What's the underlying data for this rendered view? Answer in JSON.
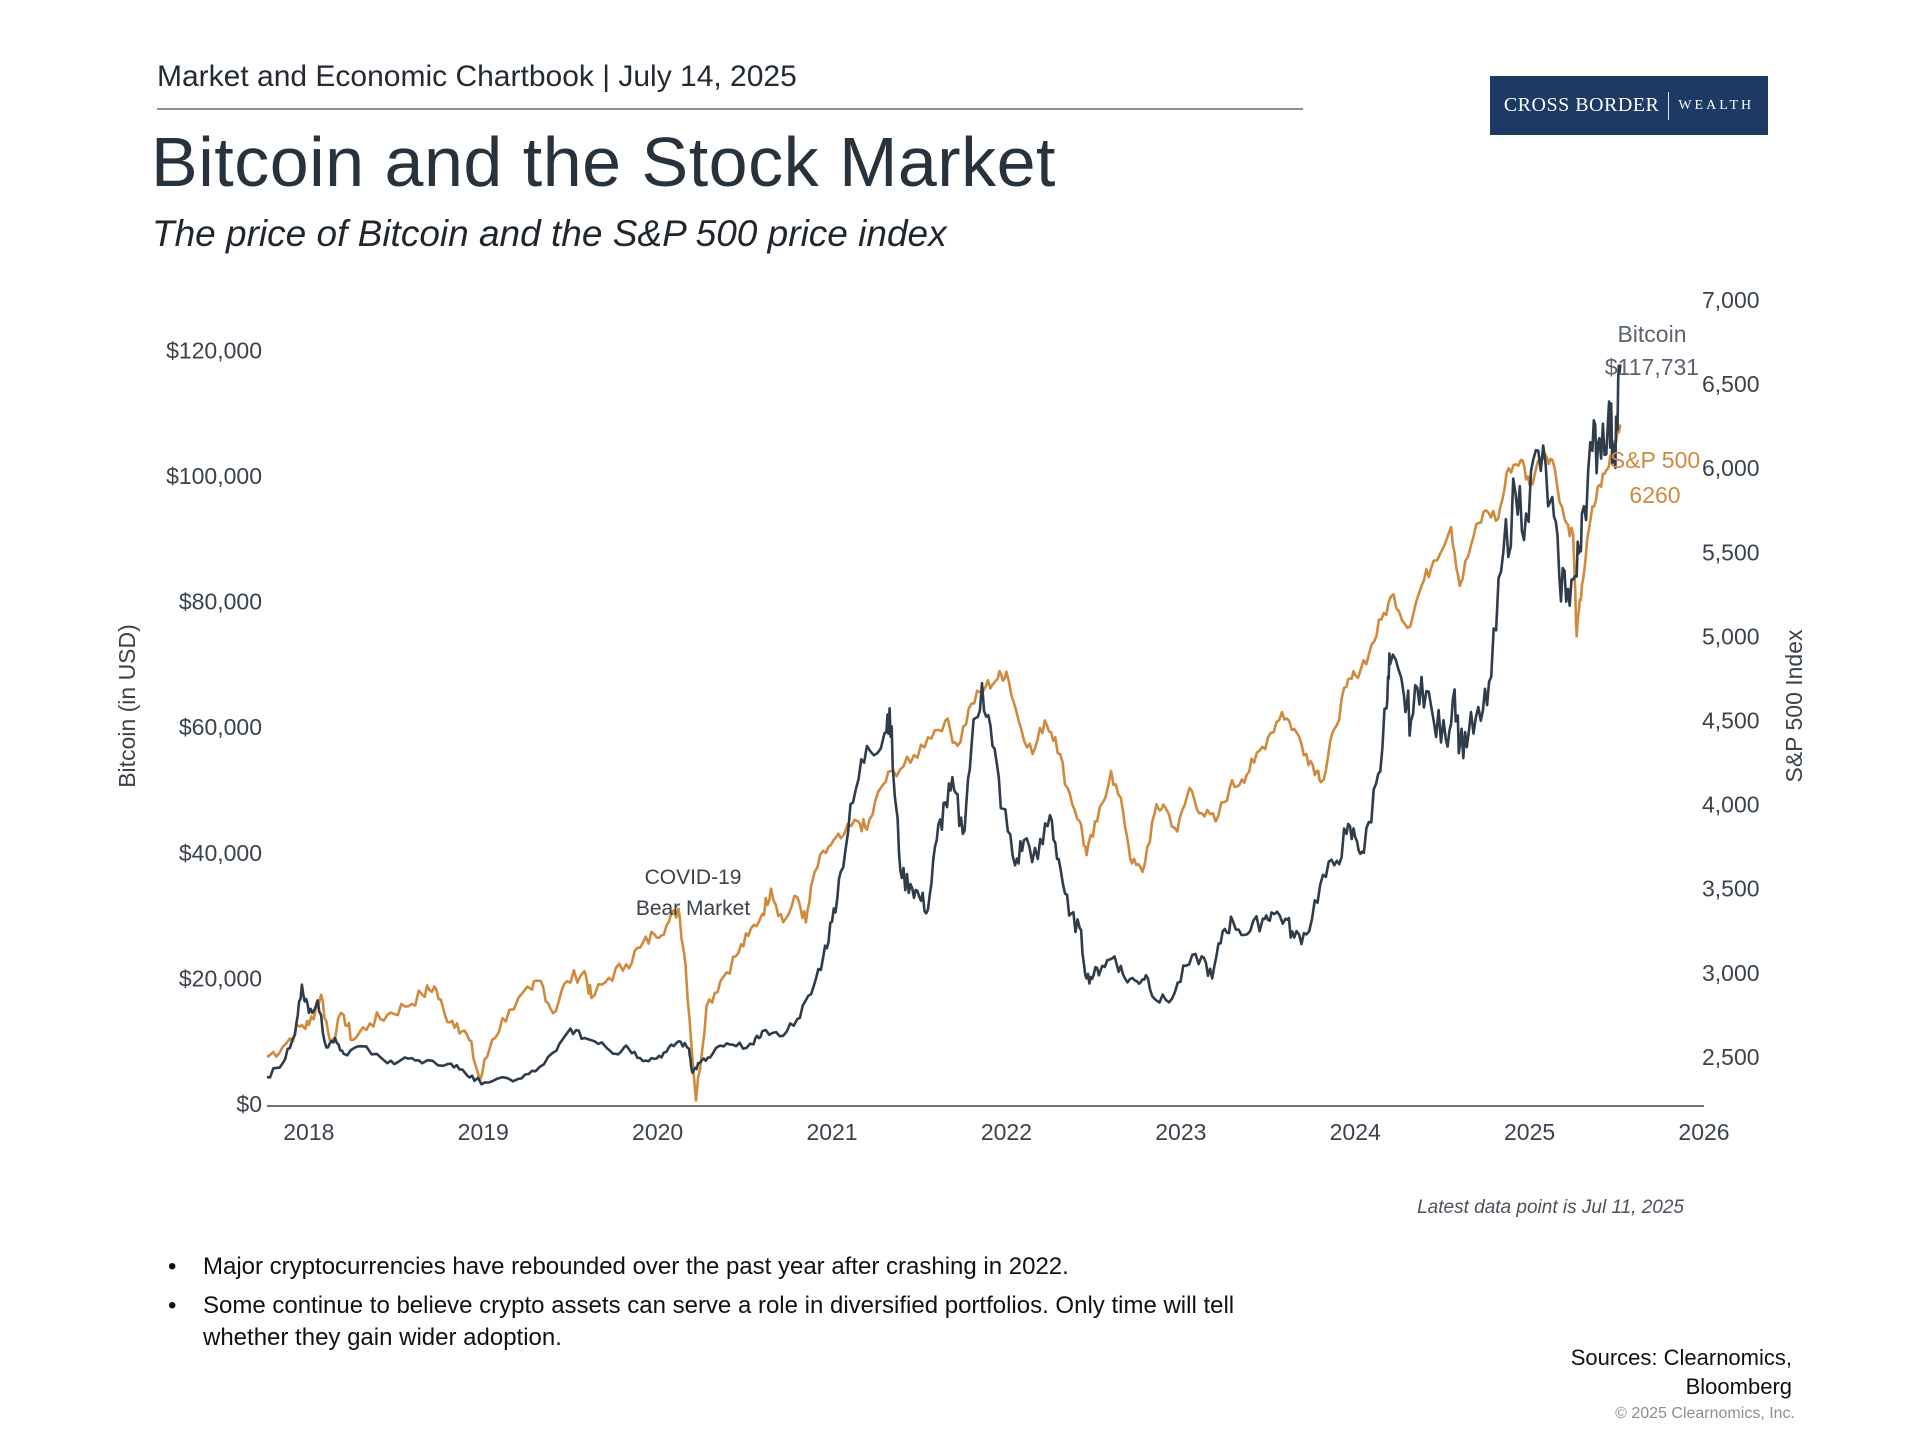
{
  "header": {
    "text": "Market and Economic Chartbook | July 14, 2025"
  },
  "logo": {
    "name_a": "CROSS BORDER",
    "name_b": "WEALTH",
    "color": "#1c3a64"
  },
  "title": "Bitcoin and the Stock Market",
  "subtitle": "The price of Bitcoin and the S&P 500 price index",
  "chart_data": {
    "type": "line",
    "title": "Bitcoin and the Stock Market",
    "subtitle": "The price of Bitcoin and the S&P 500 price index",
    "x": {
      "label": "",
      "range": [
        2017.76,
        2026.0
      ],
      "ticks": [
        2018,
        2019,
        2020,
        2021,
        2022,
        2023,
        2024,
        2025,
        2026
      ]
    },
    "y_left": {
      "label": "Bitcoin (in USD)",
      "range": [
        0,
        128000
      ],
      "ticks": [
        0,
        20000,
        40000,
        60000,
        80000,
        100000,
        120000
      ],
      "tick_labels": [
        "$0",
        "$20,000",
        "$40,000",
        "$60,000",
        "$80,000",
        "$100,000",
        "$120,000"
      ]
    },
    "y_right": {
      "label": "S&P 500 Index",
      "range": [
        2220,
        7000
      ],
      "ticks": [
        2500,
        3000,
        3500,
        4000,
        4500,
        5000,
        5500,
        6000,
        6500,
        7000
      ],
      "tick_labels": [
        "2,500",
        "3,000",
        "3,500",
        "4,000",
        "4,500",
        "5,000",
        "5,500",
        "6,000",
        "6,500",
        "7,000"
      ]
    },
    "series": [
      {
        "name": "Bitcoin",
        "axis": "left",
        "color": "#2f3c4a",
        "end_label": [
          "Bitcoin",
          "$117,731"
        ],
        "points": [
          [
            2017.76,
            4300
          ],
          [
            2017.85,
            6500
          ],
          [
            2017.92,
            11000
          ],
          [
            2017.96,
            19000
          ],
          [
            2018.0,
            14500
          ],
          [
            2018.05,
            16500
          ],
          [
            2018.1,
            9000
          ],
          [
            2018.15,
            10500
          ],
          [
            2018.2,
            8000
          ],
          [
            2018.3,
            9200
          ],
          [
            2018.45,
            6500
          ],
          [
            2018.55,
            7400
          ],
          [
            2018.65,
            6500
          ],
          [
            2018.8,
            6400
          ],
          [
            2018.88,
            5500
          ],
          [
            2018.95,
            3700
          ],
          [
            2019.05,
            3600
          ],
          [
            2019.2,
            4000
          ],
          [
            2019.3,
            5200
          ],
          [
            2019.42,
            8500
          ],
          [
            2019.5,
            12000
          ],
          [
            2019.58,
            10500
          ],
          [
            2019.68,
            9800
          ],
          [
            2019.76,
            8000
          ],
          [
            2019.82,
            9300
          ],
          [
            2019.9,
            7300
          ],
          [
            2019.98,
            7200
          ],
          [
            2020.05,
            8300
          ],
          [
            2020.12,
            10000
          ],
          [
            2020.18,
            8800
          ],
          [
            2020.2,
            5000
          ],
          [
            2020.24,
            6500
          ],
          [
            2020.3,
            7400
          ],
          [
            2020.36,
            9300
          ],
          [
            2020.45,
            9200
          ],
          [
            2020.55,
            9500
          ],
          [
            2020.6,
            11600
          ],
          [
            2020.7,
            10800
          ],
          [
            2020.8,
            13500
          ],
          [
            2020.88,
            17500
          ],
          [
            2020.95,
            23500
          ],
          [
            2021.0,
            29000
          ],
          [
            2021.05,
            37000
          ],
          [
            2021.12,
            48000
          ],
          [
            2021.2,
            57000
          ],
          [
            2021.3,
            59000
          ],
          [
            2021.33,
            63000
          ],
          [
            2021.36,
            49000
          ],
          [
            2021.4,
            36000
          ],
          [
            2021.45,
            35000
          ],
          [
            2021.5,
            33000
          ],
          [
            2021.55,
            31000
          ],
          [
            2021.6,
            42000
          ],
          [
            2021.65,
            48000
          ],
          [
            2021.7,
            50000
          ],
          [
            2021.75,
            43000
          ],
          [
            2021.8,
            57000
          ],
          [
            2021.86,
            67000
          ],
          [
            2021.92,
            57000
          ],
          [
            2021.98,
            47000
          ],
          [
            2022.05,
            38000
          ],
          [
            2022.1,
            42000
          ],
          [
            2022.18,
            39000
          ],
          [
            2022.25,
            46000
          ],
          [
            2022.3,
            39000
          ],
          [
            2022.36,
            30000
          ],
          [
            2022.42,
            28000
          ],
          [
            2022.46,
            20000
          ],
          [
            2022.5,
            20500
          ],
          [
            2022.55,
            22000
          ],
          [
            2022.62,
            23500
          ],
          [
            2022.68,
            20000
          ],
          [
            2022.75,
            19500
          ],
          [
            2022.8,
            20500
          ],
          [
            2022.86,
            16500
          ],
          [
            2022.95,
            16800
          ],
          [
            2023.03,
            22000
          ],
          [
            2023.12,
            23500
          ],
          [
            2023.18,
            20000
          ],
          [
            2023.24,
            27500
          ],
          [
            2023.3,
            29000
          ],
          [
            2023.38,
            27000
          ],
          [
            2023.47,
            29500
          ],
          [
            2023.52,
            30500
          ],
          [
            2023.6,
            29500
          ],
          [
            2023.65,
            26500
          ],
          [
            2023.72,
            27000
          ],
          [
            2023.8,
            35000
          ],
          [
            2023.88,
            38000
          ],
          [
            2023.95,
            43000
          ],
          [
            2024.0,
            42500
          ],
          [
            2024.05,
            40000
          ],
          [
            2024.12,
            51000
          ],
          [
            2024.18,
            63000
          ],
          [
            2024.2,
            70000
          ],
          [
            2024.28,
            65000
          ],
          [
            2024.32,
            61000
          ],
          [
            2024.38,
            68000
          ],
          [
            2024.45,
            61000
          ],
          [
            2024.52,
            58000
          ],
          [
            2024.57,
            66000
          ],
          [
            2024.6,
            57000
          ],
          [
            2024.65,
            59000
          ],
          [
            2024.72,
            61000
          ],
          [
            2024.78,
            68000
          ],
          [
            2024.85,
            88000
          ],
          [
            2024.92,
            97000
          ],
          [
            2024.98,
            94000
          ],
          [
            2025.05,
            104000
          ],
          [
            2025.12,
            96000
          ],
          [
            2025.17,
            84000
          ],
          [
            2025.22,
            82000
          ],
          [
            2025.27,
            84000
          ],
          [
            2025.3,
            94000
          ],
          [
            2025.36,
            104000
          ],
          [
            2025.4,
            106000
          ],
          [
            2025.45,
            109000
          ],
          [
            2025.48,
            105000
          ],
          [
            2025.5,
            108000
          ],
          [
            2025.52,
            117731
          ]
        ]
      },
      {
        "name": "S&P 500",
        "axis": "right",
        "color": "#d08a3e",
        "end_label": [
          "S&P 500",
          "6260"
        ],
        "points": [
          [
            2017.76,
            2500
          ],
          [
            2017.85,
            2560
          ],
          [
            2017.95,
            2680
          ],
          [
            2018.0,
            2690
          ],
          [
            2018.07,
            2870
          ],
          [
            2018.12,
            2600
          ],
          [
            2018.2,
            2750
          ],
          [
            2018.25,
            2600
          ],
          [
            2018.35,
            2700
          ],
          [
            2018.45,
            2750
          ],
          [
            2018.55,
            2800
          ],
          [
            2018.65,
            2870
          ],
          [
            2018.72,
            2920
          ],
          [
            2018.78,
            2750
          ],
          [
            2018.85,
            2700
          ],
          [
            2018.92,
            2600
          ],
          [
            2018.98,
            2360
          ],
          [
            2019.05,
            2600
          ],
          [
            2019.15,
            2780
          ],
          [
            2019.28,
            2900
          ],
          [
            2019.33,
            2950
          ],
          [
            2019.4,
            2760
          ],
          [
            2019.48,
            2950
          ],
          [
            2019.58,
            3010
          ],
          [
            2019.62,
            2850
          ],
          [
            2019.72,
            2970
          ],
          [
            2019.82,
            3050
          ],
          [
            2019.9,
            3150
          ],
          [
            2019.98,
            3230
          ],
          [
            2020.05,
            3280
          ],
          [
            2020.12,
            3380
          ],
          [
            2020.16,
            3050
          ],
          [
            2020.22,
            2240
          ],
          [
            2020.28,
            2800
          ],
          [
            2020.36,
            2950
          ],
          [
            2020.45,
            3100
          ],
          [
            2020.52,
            3220
          ],
          [
            2020.6,
            3350
          ],
          [
            2020.65,
            3500
          ],
          [
            2020.72,
            3300
          ],
          [
            2020.8,
            3450
          ],
          [
            2020.85,
            3300
          ],
          [
            2020.9,
            3600
          ],
          [
            2020.98,
            3750
          ],
          [
            2021.05,
            3800
          ],
          [
            2021.15,
            3900
          ],
          [
            2021.2,
            3850
          ],
          [
            2021.28,
            4100
          ],
          [
            2021.35,
            4200
          ],
          [
            2021.45,
            4250
          ],
          [
            2021.55,
            4400
          ],
          [
            2021.65,
            4500
          ],
          [
            2021.72,
            4350
          ],
          [
            2021.8,
            4600
          ],
          [
            2021.88,
            4700
          ],
          [
            2021.95,
            4750
          ],
          [
            2022.0,
            4790
          ],
          [
            2022.07,
            4500
          ],
          [
            2022.15,
            4300
          ],
          [
            2022.22,
            4500
          ],
          [
            2022.28,
            4400
          ],
          [
            2022.35,
            4100
          ],
          [
            2022.42,
            3900
          ],
          [
            2022.46,
            3700
          ],
          [
            2022.52,
            3900
          ],
          [
            2022.6,
            4200
          ],
          [
            2022.67,
            3950
          ],
          [
            2022.72,
            3650
          ],
          [
            2022.78,
            3600
          ],
          [
            2022.85,
            3950
          ],
          [
            2022.9,
            4000
          ],
          [
            2022.98,
            3840
          ],
          [
            2023.05,
            4100
          ],
          [
            2023.12,
            3950
          ],
          [
            2023.2,
            3900
          ],
          [
            2023.28,
            4100
          ],
          [
            2023.35,
            4150
          ],
          [
            2023.42,
            4250
          ],
          [
            2023.5,
            4400
          ],
          [
            2023.58,
            4550
          ],
          [
            2023.65,
            4450
          ],
          [
            2023.72,
            4300
          ],
          [
            2023.78,
            4200
          ],
          [
            2023.82,
            4150
          ],
          [
            2023.88,
            4450
          ],
          [
            2023.95,
            4700
          ],
          [
            2024.0,
            4770
          ],
          [
            2024.08,
            4900
          ],
          [
            2024.15,
            5100
          ],
          [
            2024.22,
            5250
          ],
          [
            2024.3,
            5050
          ],
          [
            2024.38,
            5300
          ],
          [
            2024.45,
            5450
          ],
          [
            2024.55,
            5650
          ],
          [
            2024.6,
            5300
          ],
          [
            2024.68,
            5600
          ],
          [
            2024.75,
            5750
          ],
          [
            2024.82,
            5700
          ],
          [
            2024.88,
            6000
          ],
          [
            2024.95,
            6050
          ],
          [
            2025.0,
            5900
          ],
          [
            2025.08,
            6100
          ],
          [
            2025.13,
            6050
          ],
          [
            2025.2,
            5700
          ],
          [
            2025.25,
            5600
          ],
          [
            2025.27,
            5000
          ],
          [
            2025.3,
            5300
          ],
          [
            2025.35,
            5700
          ],
          [
            2025.4,
            5900
          ],
          [
            2025.45,
            6000
          ],
          [
            2025.48,
            6150
          ],
          [
            2025.52,
            6260
          ]
        ]
      }
    ],
    "annotations": [
      {
        "lines": [
          "COVID-19",
          "Bear Market"
        ],
        "x": 2020.25,
        "axis": "right",
        "y": 3620
      }
    ],
    "footnote": "Latest data point is Jul 11, 2025"
  },
  "bullets": [
    "Major cryptocurrencies have rebounded over the past year after crashing in 2022.",
    "Some continue to believe crypto assets can serve a role in diversified portfolios. Only time will tell whether they gain wider adoption."
  ],
  "sources": [
    "Sources: Clearnomics,",
    "Bloomberg"
  ],
  "copyright": "© 2025 Clearnomics, Inc."
}
